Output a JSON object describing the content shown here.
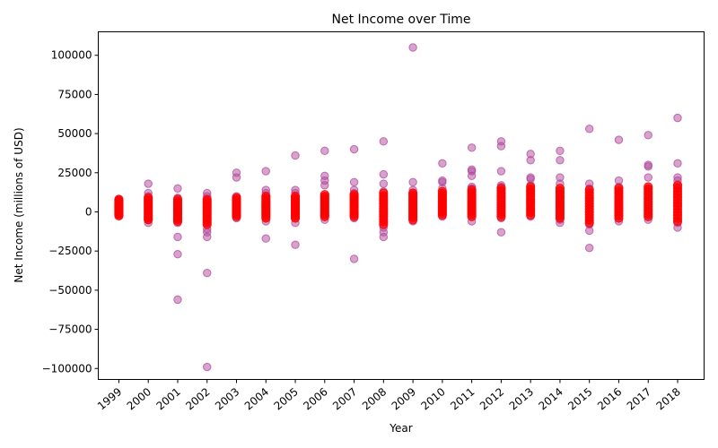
{
  "chart_data": {
    "type": "scatter",
    "title": "Net Income over Time",
    "xlabel": "Year",
    "ylabel": "Net Income (millions of USD)",
    "xlim": [
      1998.3,
      2018.9
    ],
    "ylim": [
      -107000,
      115000
    ],
    "x_tick_labels": [
      "1999",
      "2000",
      "2001",
      "2002",
      "2003",
      "2004",
      "2005",
      "2006",
      "2007",
      "2008",
      "2009",
      "2010",
      "2011",
      "2012",
      "2013",
      "2014",
      "2015",
      "2016",
      "2017",
      "2018"
    ],
    "y_ticks": [
      -100000,
      -75000,
      -50000,
      -25000,
      0,
      25000,
      50000,
      75000,
      100000
    ],
    "y_tick_labels": [
      "−100000",
      "−75000",
      "−50000",
      "−25000",
      "0",
      "25000",
      "50000",
      "75000",
      "100000"
    ],
    "grid": false,
    "legend": "none",
    "colors": {
      "outlier": "#b0479b",
      "cluster": "#ff0000",
      "axis": "#000000"
    },
    "outliers": [
      {
        "x": 1999,
        "y": 8000
      },
      {
        "x": 1999,
        "y": 6000
      },
      {
        "x": 1999,
        "y": -2000
      },
      {
        "x": 2000,
        "y": 18000
      },
      {
        "x": 2000,
        "y": 12000
      },
      {
        "x": 2000,
        "y": 10000
      },
      {
        "x": 2000,
        "y": -7000
      },
      {
        "x": 2000,
        "y": -5000
      },
      {
        "x": 2001,
        "y": 15000
      },
      {
        "x": 2001,
        "y": 9000
      },
      {
        "x": 2001,
        "y": -16000
      },
      {
        "x": 2001,
        "y": -27000
      },
      {
        "x": 2001,
        "y": -56000
      },
      {
        "x": 2001,
        "y": -7000
      },
      {
        "x": 2002,
        "y": 12000
      },
      {
        "x": 2002,
        "y": 10000
      },
      {
        "x": 2002,
        "y": -11000
      },
      {
        "x": 2002,
        "y": -13000
      },
      {
        "x": 2002,
        "y": -16000
      },
      {
        "x": 2002,
        "y": -39000
      },
      {
        "x": 2002,
        "y": -99000
      },
      {
        "x": 2003,
        "y": 25000
      },
      {
        "x": 2003,
        "y": 22000
      },
      {
        "x": 2003,
        "y": 10000
      },
      {
        "x": 2003,
        "y": -4000
      },
      {
        "x": 2004,
        "y": 26000
      },
      {
        "x": 2004,
        "y": 14000
      },
      {
        "x": 2004,
        "y": 12000
      },
      {
        "x": 2004,
        "y": -6000
      },
      {
        "x": 2004,
        "y": -17000
      },
      {
        "x": 2005,
        "y": 36000
      },
      {
        "x": 2005,
        "y": 14000
      },
      {
        "x": 2005,
        "y": 12000
      },
      {
        "x": 2005,
        "y": -7000
      },
      {
        "x": 2005,
        "y": -21000
      },
      {
        "x": 2006,
        "y": 39000
      },
      {
        "x": 2006,
        "y": 23000
      },
      {
        "x": 2006,
        "y": 20000
      },
      {
        "x": 2006,
        "y": 17000
      },
      {
        "x": 2006,
        "y": -5000
      },
      {
        "x": 2007,
        "y": 40000
      },
      {
        "x": 2007,
        "y": 19000
      },
      {
        "x": 2007,
        "y": 14000
      },
      {
        "x": 2007,
        "y": 12000
      },
      {
        "x": 2007,
        "y": -4000
      },
      {
        "x": 2007,
        "y": -30000
      },
      {
        "x": 2008,
        "y": 45000
      },
      {
        "x": 2008,
        "y": 24000
      },
      {
        "x": 2008,
        "y": 18000
      },
      {
        "x": 2008,
        "y": 13000
      },
      {
        "x": 2008,
        "y": -10000
      },
      {
        "x": 2008,
        "y": -13000
      },
      {
        "x": 2008,
        "y": -16000
      },
      {
        "x": 2009,
        "y": 105000
      },
      {
        "x": 2009,
        "y": 19000
      },
      {
        "x": 2009,
        "y": 14000
      },
      {
        "x": 2009,
        "y": 12000
      },
      {
        "x": 2009,
        "y": -6000
      },
      {
        "x": 2010,
        "y": 31000
      },
      {
        "x": 2010,
        "y": 20000
      },
      {
        "x": 2010,
        "y": 19000
      },
      {
        "x": 2010,
        "y": 15000
      },
      {
        "x": 2010,
        "y": -3000
      },
      {
        "x": 2011,
        "y": 41000
      },
      {
        "x": 2011,
        "y": 27000
      },
      {
        "x": 2011,
        "y": 26000
      },
      {
        "x": 2011,
        "y": 23000
      },
      {
        "x": 2011,
        "y": 16000
      },
      {
        "x": 2011,
        "y": 15000
      },
      {
        "x": 2011,
        "y": -6000
      },
      {
        "x": 2012,
        "y": 45000
      },
      {
        "x": 2012,
        "y": 42000
      },
      {
        "x": 2012,
        "y": 26000
      },
      {
        "x": 2012,
        "y": 17000
      },
      {
        "x": 2012,
        "y": 16000
      },
      {
        "x": 2012,
        "y": 11000
      },
      {
        "x": 2012,
        "y": -4000
      },
      {
        "x": 2012,
        "y": -13000
      },
      {
        "x": 2013,
        "y": 37000
      },
      {
        "x": 2013,
        "y": 33000
      },
      {
        "x": 2013,
        "y": 22000
      },
      {
        "x": 2013,
        "y": 21000
      },
      {
        "x": 2013,
        "y": 17000
      },
      {
        "x": 2013,
        "y": -3000
      },
      {
        "x": 2014,
        "y": 39000
      },
      {
        "x": 2014,
        "y": 33000
      },
      {
        "x": 2014,
        "y": 22000
      },
      {
        "x": 2014,
        "y": 18000
      },
      {
        "x": 2014,
        "y": 12000
      },
      {
        "x": 2014,
        "y": -5000
      },
      {
        "x": 2014,
        "y": -7000
      },
      {
        "x": 2015,
        "y": 53000
      },
      {
        "x": 2015,
        "y": 18000
      },
      {
        "x": 2015,
        "y": 15000
      },
      {
        "x": 2015,
        "y": -8000
      },
      {
        "x": 2015,
        "y": -12000
      },
      {
        "x": 2015,
        "y": -23000
      },
      {
        "x": 2016,
        "y": 46000
      },
      {
        "x": 2016,
        "y": 20000
      },
      {
        "x": 2016,
        "y": 16000
      },
      {
        "x": 2016,
        "y": 12000
      },
      {
        "x": 2016,
        "y": -6000
      },
      {
        "x": 2017,
        "y": 49000
      },
      {
        "x": 2017,
        "y": 30000
      },
      {
        "x": 2017,
        "y": 29000
      },
      {
        "x": 2017,
        "y": 22000
      },
      {
        "x": 2017,
        "y": 15000
      },
      {
        "x": 2017,
        "y": 10000
      },
      {
        "x": 2017,
        "y": -5000
      },
      {
        "x": 2018,
        "y": 60000
      },
      {
        "x": 2018,
        "y": 31000
      },
      {
        "x": 2018,
        "y": 22000
      },
      {
        "x": 2018,
        "y": 20000
      },
      {
        "x": 2018,
        "y": 16000
      },
      {
        "x": 2018,
        "y": -7000
      },
      {
        "x": 2018,
        "y": -10000
      }
    ],
    "clusters": [
      {
        "x": 1999,
        "y_min": -2500,
        "y_max": 8000
      },
      {
        "x": 2000,
        "y_min": -5000,
        "y_max": 9000
      },
      {
        "x": 2001,
        "y_min": -6000,
        "y_max": 8000
      },
      {
        "x": 2002,
        "y_min": -8000,
        "y_max": 8000
      },
      {
        "x": 2003,
        "y_min": -3000,
        "y_max": 9000
      },
      {
        "x": 2004,
        "y_min": -4000,
        "y_max": 10000
      },
      {
        "x": 2005,
        "y_min": -4000,
        "y_max": 10000
      },
      {
        "x": 2006,
        "y_min": -3000,
        "y_max": 11000
      },
      {
        "x": 2007,
        "y_min": -3000,
        "y_max": 11000
      },
      {
        "x": 2008,
        "y_min": -8000,
        "y_max": 12000
      },
      {
        "x": 2009,
        "y_min": -5000,
        "y_max": 12000
      },
      {
        "x": 2010,
        "y_min": -2000,
        "y_max": 13000
      },
      {
        "x": 2011,
        "y_min": -3000,
        "y_max": 14000
      },
      {
        "x": 2012,
        "y_min": -3000,
        "y_max": 15000
      },
      {
        "x": 2013,
        "y_min": -2000,
        "y_max": 16000
      },
      {
        "x": 2014,
        "y_min": -4000,
        "y_max": 15000
      },
      {
        "x": 2015,
        "y_min": -7000,
        "y_max": 14000
      },
      {
        "x": 2016,
        "y_min": -4000,
        "y_max": 15000
      },
      {
        "x": 2017,
        "y_min": -3000,
        "y_max": 16000
      },
      {
        "x": 2018,
        "y_min": -6000,
        "y_max": 17000
      }
    ]
  }
}
